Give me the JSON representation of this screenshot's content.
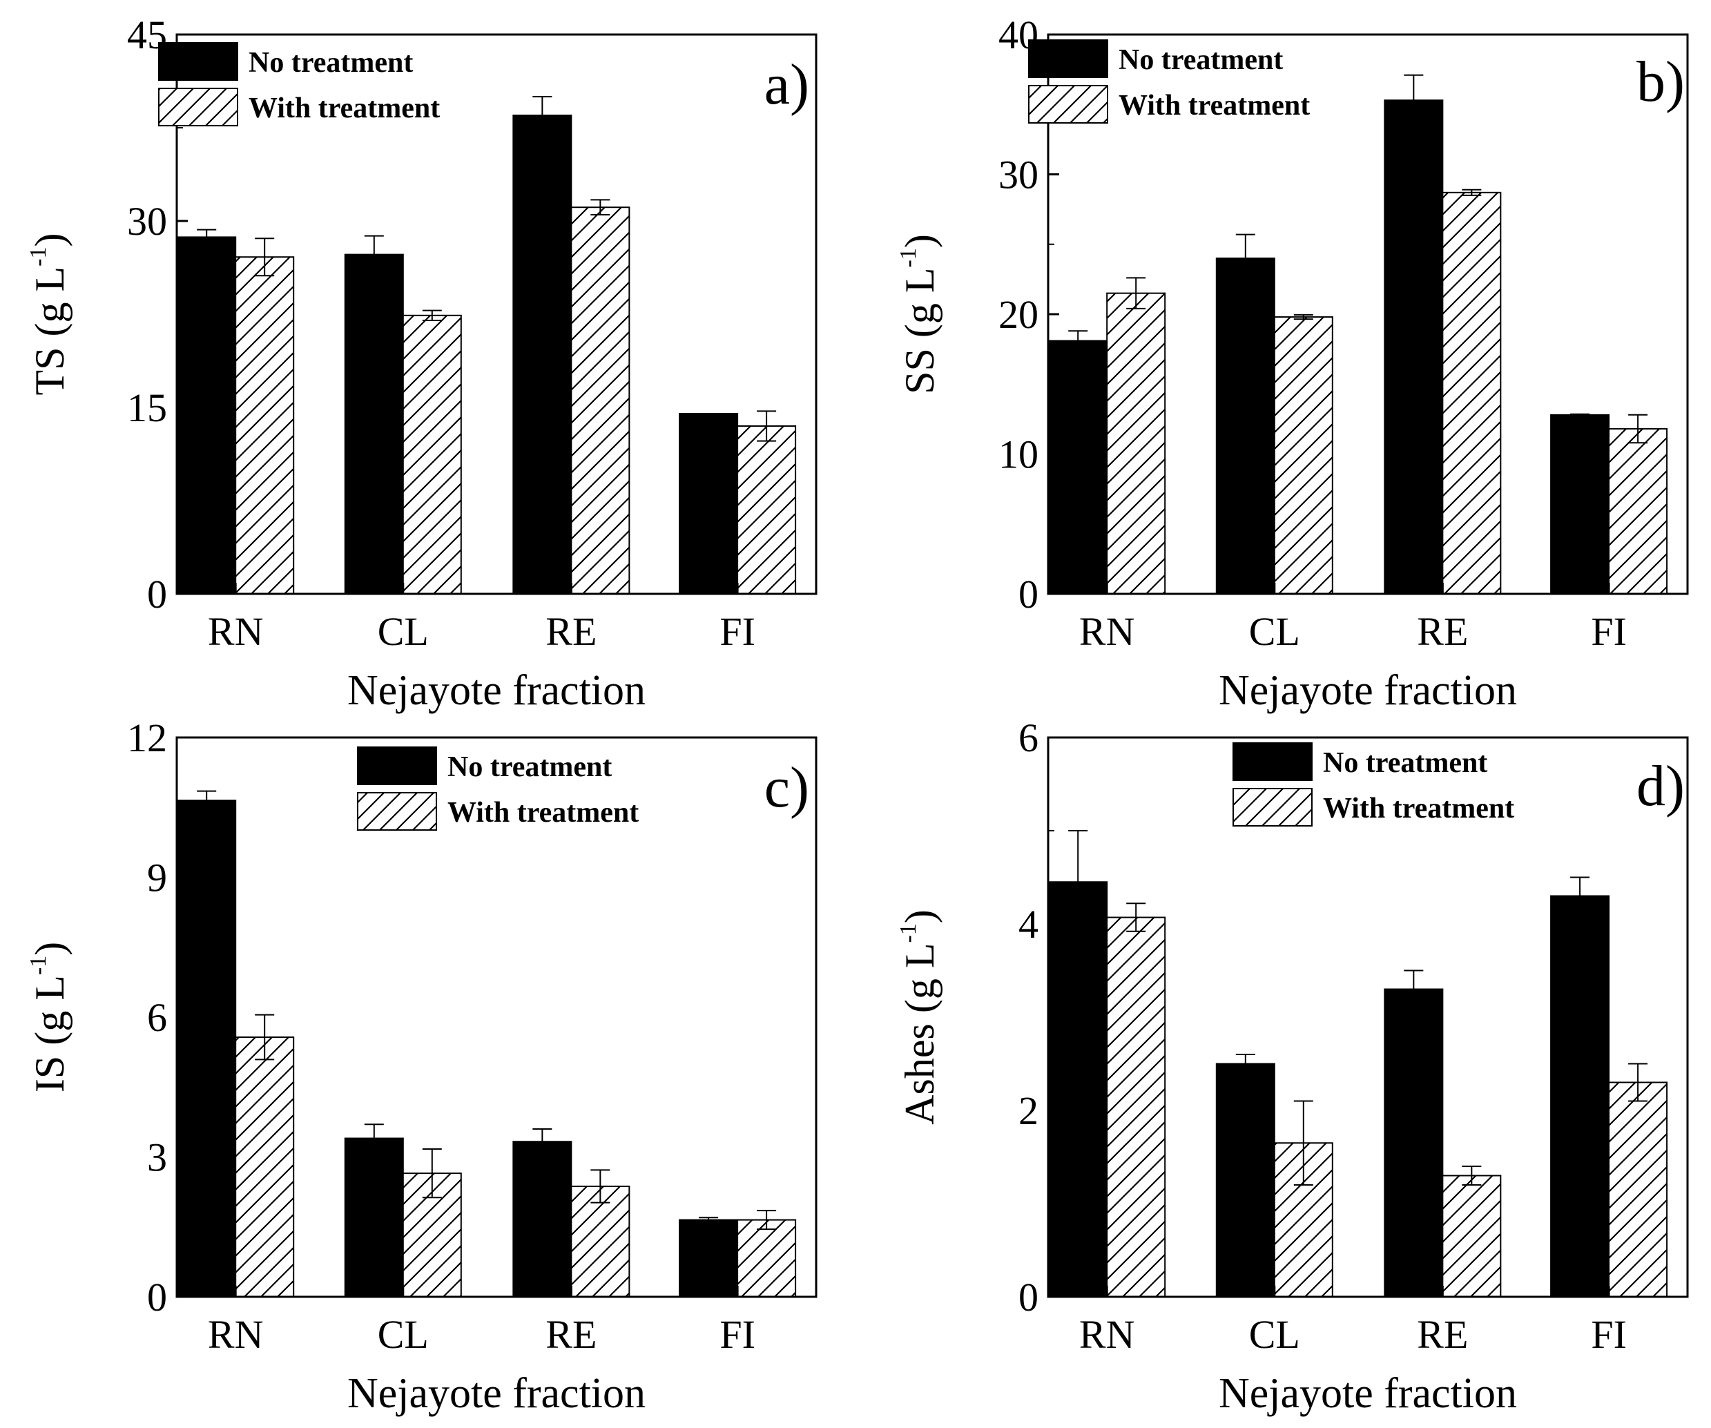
{
  "chart_data": [
    {
      "panel": "a)",
      "type": "bar",
      "xlabel": "Nejayote fraction",
      "ylabel": "TS (g L",
      "ylabel_sup": "-1",
      "ylabel_close": ")",
      "ylim": [
        0,
        45
      ],
      "yticks": [
        0,
        15,
        30,
        45
      ],
      "categories": [
        "RN",
        "CL",
        "RE",
        "FI"
      ],
      "series": [
        {
          "name": "No treatment",
          "values": [
            28.7,
            27.3,
            38.5,
            14.5
          ],
          "errors": [
            0.6,
            1.5,
            1.5,
            0.0
          ]
        },
        {
          "name": "With treatment",
          "values": [
            27.1,
            22.4,
            31.1,
            13.5
          ],
          "errors": [
            1.5,
            0.4,
            0.6,
            1.2
          ]
        }
      ],
      "legend_position": "top-left"
    },
    {
      "panel": "b)",
      "type": "bar",
      "xlabel": "Nejayote fraction",
      "ylabel": "SS (g L",
      "ylabel_sup": "-1",
      "ylabel_close": ")",
      "ylim": [
        0,
        40
      ],
      "yticks": [
        0,
        10,
        20,
        30,
        40
      ],
      "categories": [
        "RN",
        "CL",
        "RE",
        "FI"
      ],
      "series": [
        {
          "name": "No treatment",
          "values": [
            18.1,
            24.0,
            35.3,
            12.8
          ],
          "errors": [
            0.7,
            1.7,
            1.8,
            0.05
          ]
        },
        {
          "name": "With treatment",
          "values": [
            21.5,
            19.8,
            28.7,
            11.8
          ],
          "errors": [
            1.1,
            0.15,
            0.2,
            1.0
          ]
        }
      ],
      "legend_position": "top-left"
    },
    {
      "panel": "c)",
      "type": "bar",
      "xlabel": "Nejayote fraction",
      "ylabel": "IS (g L",
      "ylabel_sup": "-1",
      "ylabel_close": ")",
      "ylim": [
        0,
        12
      ],
      "yticks": [
        0,
        3,
        6,
        9,
        12
      ],
      "categories": [
        "RN",
        "CL",
        "RE",
        "FI"
      ],
      "series": [
        {
          "name": "No treatment",
          "values": [
            10.65,
            3.4,
            3.33,
            1.65
          ],
          "errors": [
            0.2,
            0.3,
            0.27,
            0.05
          ]
        },
        {
          "name": "With treatment",
          "values": [
            5.57,
            2.65,
            2.37,
            1.65
          ],
          "errors": [
            0.48,
            0.52,
            0.35,
            0.2
          ]
        }
      ],
      "legend_position": "top-center"
    },
    {
      "panel": "d)",
      "type": "bar",
      "xlabel": "Nejayote fraction",
      "ylabel": "Ashes (g L",
      "ylabel_sup": "-1",
      "ylabel_close": ")",
      "ylim": [
        0,
        6
      ],
      "yticks": [
        0,
        2,
        4,
        6
      ],
      "categories": [
        "RN",
        "CL",
        "RE",
        "FI"
      ],
      "series": [
        {
          "name": "No treatment",
          "values": [
            4.45,
            2.5,
            3.3,
            4.3
          ],
          "errors": [
            0.55,
            0.1,
            0.2,
            0.2
          ]
        },
        {
          "name": "With treatment",
          "values": [
            4.07,
            1.65,
            1.3,
            2.3
          ],
          "errors": [
            0.15,
            0.45,
            0.1,
            0.2
          ]
        }
      ],
      "legend_position": "top-center"
    }
  ]
}
